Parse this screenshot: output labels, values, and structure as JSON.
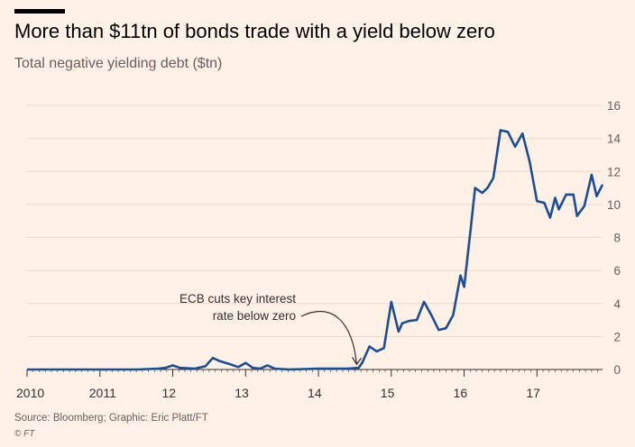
{
  "header": {
    "title": "More than $11tn of bonds trade with a yield below zero",
    "subtitle": "Total negative yielding debt ($tn)"
  },
  "footer": {
    "source": "Source: Bloomberg; Graphic: Eric Platt/FT",
    "credit": "© FT"
  },
  "colors": {
    "background": "#fff1e5",
    "line": "#1b4e96",
    "grid": "#e6d9ce",
    "axis": "#33302e"
  },
  "chart_data": {
    "type": "line",
    "title": "More than $11tn of bonds trade with a yield below zero",
    "subtitle": "Total negative yielding debt ($tn)",
    "ylabel": "",
    "xlabel": "",
    "ylim": [
      0,
      16
    ],
    "xlim": [
      2010,
      2017.9
    ],
    "yticks": [
      0,
      2,
      4,
      6,
      8,
      10,
      12,
      14,
      16
    ],
    "xticks": [
      {
        "value": 2010,
        "label": "2010"
      },
      {
        "value": 2011,
        "label": "2011"
      },
      {
        "value": 2012,
        "label": "12"
      },
      {
        "value": 2013,
        "label": "13"
      },
      {
        "value": 2014,
        "label": "14"
      },
      {
        "value": 2015,
        "label": "15"
      },
      {
        "value": 2016,
        "label": "16"
      },
      {
        "value": 2017,
        "label": "17"
      }
    ],
    "y_axis_position": "right",
    "grid": true,
    "series": [
      {
        "name": "Total negative yielding debt ($tn)",
        "x": [
          2010.0,
          2011.0,
          2011.5,
          2011.8,
          2011.9,
          2012.0,
          2012.1,
          2012.3,
          2012.45,
          2012.55,
          2012.65,
          2012.8,
          2012.9,
          2013.0,
          2013.1,
          2013.2,
          2013.3,
          2013.4,
          2013.6,
          2014.0,
          2014.4,
          2014.55,
          2014.6,
          2014.7,
          2014.8,
          2014.9,
          2015.0,
          2015.1,
          2015.15,
          2015.25,
          2015.35,
          2015.45,
          2015.55,
          2015.65,
          2015.75,
          2015.85,
          2015.95,
          2016.0,
          2016.1,
          2016.15,
          2016.25,
          2016.32,
          2016.4,
          2016.5,
          2016.6,
          2016.7,
          2016.8,
          2016.9,
          2017.0,
          2017.1,
          2017.18,
          2017.25,
          2017.3,
          2017.4,
          2017.5,
          2017.55,
          2017.65,
          2017.75,
          2017.82,
          2017.9
        ],
        "values": [
          0.0,
          0.0,
          0.0,
          0.05,
          0.1,
          0.25,
          0.1,
          0.05,
          0.2,
          0.7,
          0.5,
          0.3,
          0.15,
          0.4,
          0.1,
          0.05,
          0.25,
          0.05,
          0.0,
          0.05,
          0.05,
          0.1,
          0.4,
          1.4,
          1.1,
          1.3,
          4.1,
          2.3,
          2.8,
          2.95,
          3.0,
          4.1,
          3.3,
          2.4,
          2.5,
          3.3,
          5.7,
          5.0,
          8.9,
          11.0,
          10.7,
          11.0,
          11.6,
          14.5,
          14.4,
          13.5,
          14.3,
          12.6,
          10.2,
          10.1,
          9.2,
          10.4,
          9.7,
          10.6,
          10.6,
          9.3,
          9.9,
          11.8,
          10.5,
          11.2
        ]
      }
    ],
    "annotations": [
      {
        "lines": [
          "ECB cuts key interest",
          "rate below zero"
        ],
        "x": 2014.55,
        "y": 0.15
      }
    ]
  }
}
